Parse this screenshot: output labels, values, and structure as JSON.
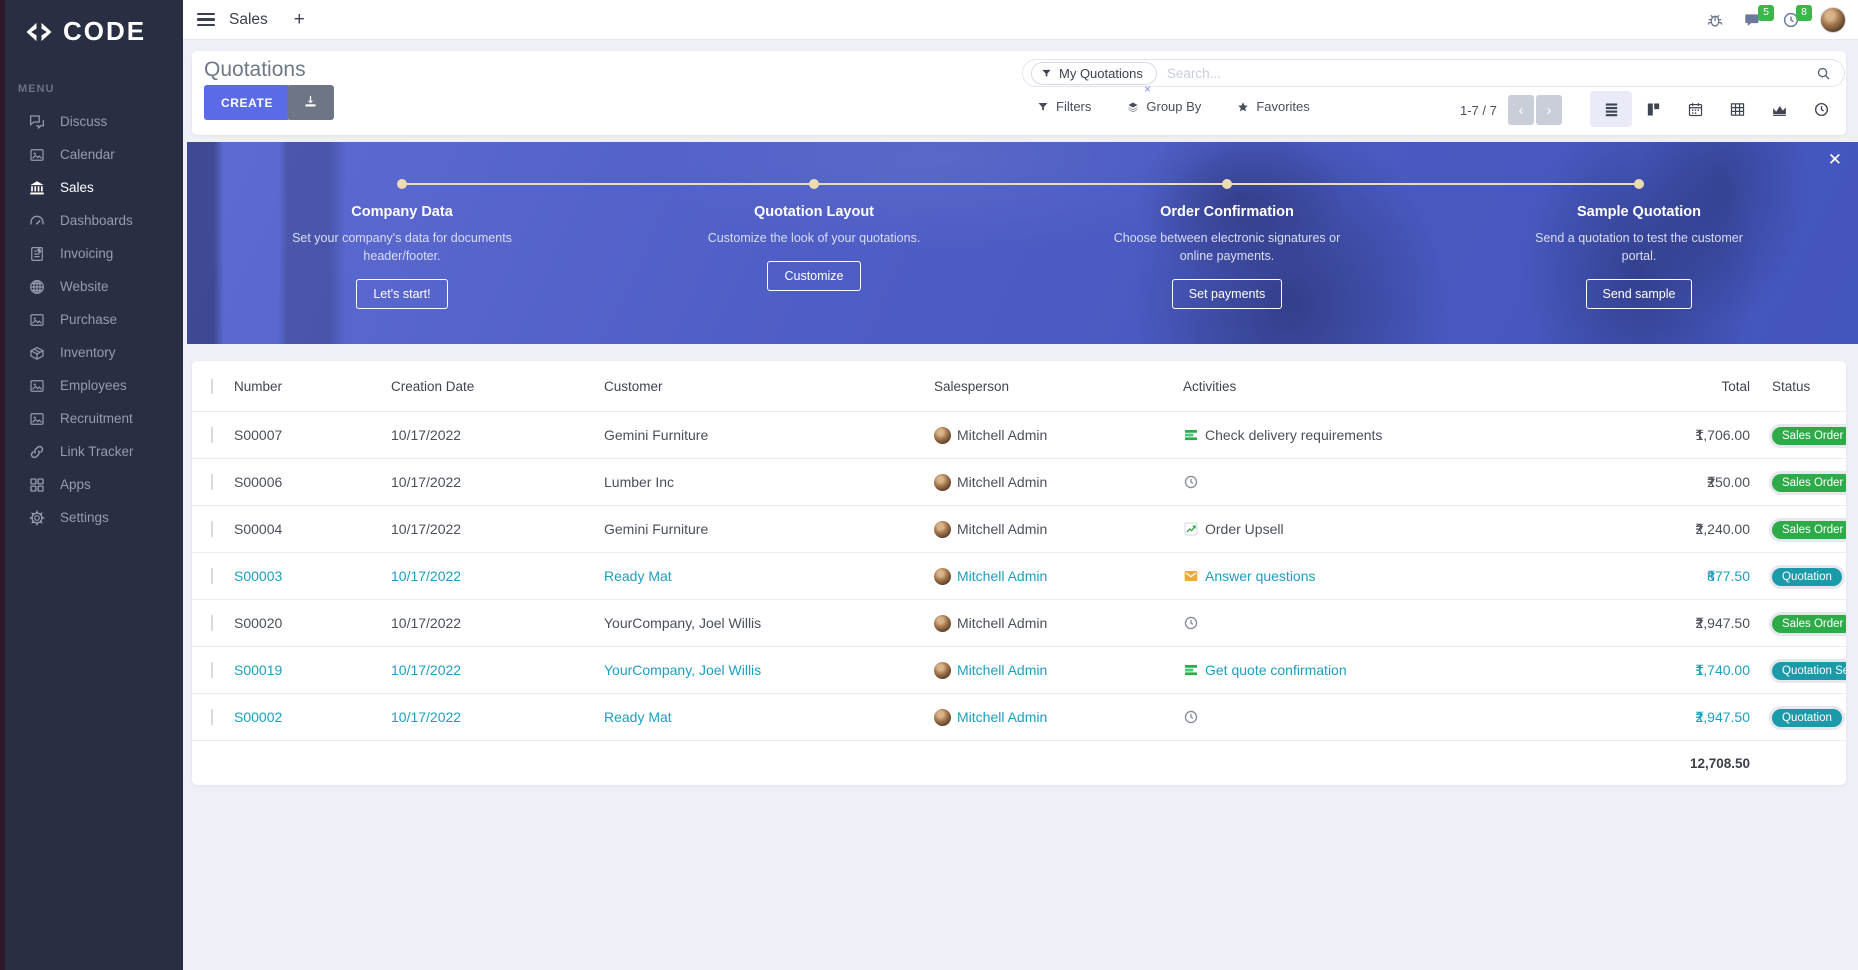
{
  "colors": {
    "accent": "#5b6be8",
    "teal_text": "#1b9fc0",
    "badge_green": "#2eab49",
    "badge_teal": "#1b9aaa",
    "banner_blue": "#4d5cc4",
    "timeline_cream": "#ecdcb2"
  },
  "sidebar": {
    "logo_text": "CODE",
    "menu_label": "MENU",
    "items": [
      {
        "label": "Discuss",
        "icon": "discuss-icon",
        "active": false
      },
      {
        "label": "Calendar",
        "icon": "image-icon",
        "active": false
      },
      {
        "label": "Sales",
        "icon": "sales-icon",
        "active": true
      },
      {
        "label": "Dashboards",
        "icon": "dashboard-icon",
        "active": false
      },
      {
        "label": "Invoicing",
        "icon": "invoice-icon",
        "active": false
      },
      {
        "label": "Website",
        "icon": "globe-icon",
        "active": false
      },
      {
        "label": "Purchase",
        "icon": "image-icon",
        "active": false
      },
      {
        "label": "Inventory",
        "icon": "box-icon",
        "active": false
      },
      {
        "label": "Employees",
        "icon": "image-icon",
        "active": false
      },
      {
        "label": "Recruitment",
        "icon": "image-icon",
        "active": false
      },
      {
        "label": "Link Tracker",
        "icon": "link-icon",
        "active": false
      },
      {
        "label": "Apps",
        "icon": "grid-icon",
        "active": false
      },
      {
        "label": "Settings",
        "icon": "gear-icon",
        "active": false
      }
    ]
  },
  "topbar": {
    "app_title": "Sales",
    "plus_label": "+",
    "messages_badge": "5",
    "activities_badge": "8"
  },
  "header": {
    "title": "Quotations",
    "create_label": "CREATE",
    "search": {
      "facet": "My Quotations",
      "facet_remove": "×",
      "placeholder": "Search..."
    },
    "filters_label": "Filters",
    "groupby_label": "Group By",
    "favorites_label": "Favorites",
    "pager_text": "1-7 / 7",
    "pager_prev": "‹",
    "pager_next": "›",
    "views": [
      "list-view-icon",
      "kanban-view-icon",
      "calendar-view-icon",
      "pivot-view-icon",
      "graph-view-icon",
      "activity-view-icon"
    ],
    "active_view": "list-view-icon"
  },
  "banner": {
    "close_label": "✕",
    "steps": [
      {
        "title": "Company Data",
        "description": "Set your company's data for documents header/footer.",
        "button": "Let's start!"
      },
      {
        "title": "Quotation Layout",
        "description": "Customize the look of your quotations.",
        "button": "Customize"
      },
      {
        "title": "Order Confirmation",
        "description": "Choose between electronic signatures or online payments.",
        "button": "Set payments"
      },
      {
        "title": "Sample Quotation",
        "description": "Send a quotation to test the customer portal.",
        "button": "Send sample"
      }
    ]
  },
  "table": {
    "columns": {
      "number": "Number",
      "date": "Creation Date",
      "customer": "Customer",
      "salesperson": "Salesperson",
      "activities": "Activities",
      "total": "Total",
      "status": "Status"
    },
    "currency": "₹",
    "rows": [
      {
        "number": "S00007",
        "date": "10/17/2022",
        "customer": "Gemini Furniture",
        "salesperson": "Mitchell Admin",
        "activity_icon": "list-activity-icon",
        "activity_text": "Check delivery requirements",
        "total": "1,706.00",
        "status": "Sales Order",
        "status_color": "green",
        "highlight": false
      },
      {
        "number": "S00006",
        "date": "10/17/2022",
        "customer": "Lumber Inc",
        "salesperson": "Mitchell Admin",
        "activity_icon": "clock-activity-icon",
        "activity_text": "",
        "total": "250.00",
        "status": "Sales Order",
        "status_color": "green",
        "highlight": false
      },
      {
        "number": "S00004",
        "date": "10/17/2022",
        "customer": "Gemini Furniture",
        "salesperson": "Mitchell Admin",
        "activity_icon": "chart-activity-icon",
        "activity_text": "Order Upsell",
        "total": "2,240.00",
        "status": "Sales Order",
        "status_color": "green",
        "highlight": false
      },
      {
        "number": "S00003",
        "date": "10/17/2022",
        "customer": "Ready Mat",
        "salesperson": "Mitchell Admin",
        "activity_icon": "envelope-activity-icon",
        "activity_text": "Answer questions",
        "total": "877.50",
        "status": "Quotation",
        "status_color": "teal",
        "highlight": true
      },
      {
        "number": "S00020",
        "date": "10/17/2022",
        "customer": "YourCompany, Joel Willis",
        "salesperson": "Mitchell Admin",
        "activity_icon": "clock-activity-icon",
        "activity_text": "",
        "total": "2,947.50",
        "status": "Sales Order",
        "status_color": "green",
        "highlight": false
      },
      {
        "number": "S00019",
        "date": "10/17/2022",
        "customer": "YourCompany, Joel Willis",
        "salesperson": "Mitchell Admin",
        "activity_icon": "list-activity-icon",
        "activity_text": "Get quote confirmation",
        "total": "1,740.00",
        "status": "Quotation Sent",
        "status_color": "teal",
        "highlight": true
      },
      {
        "number": "S00002",
        "date": "10/17/2022",
        "customer": "Ready Mat",
        "salesperson": "Mitchell Admin",
        "activity_icon": "clock-activity-icon",
        "activity_text": "",
        "total": "2,947.50",
        "status": "Quotation",
        "status_color": "teal",
        "highlight": true
      }
    ],
    "footer_total": "12,708.50"
  }
}
